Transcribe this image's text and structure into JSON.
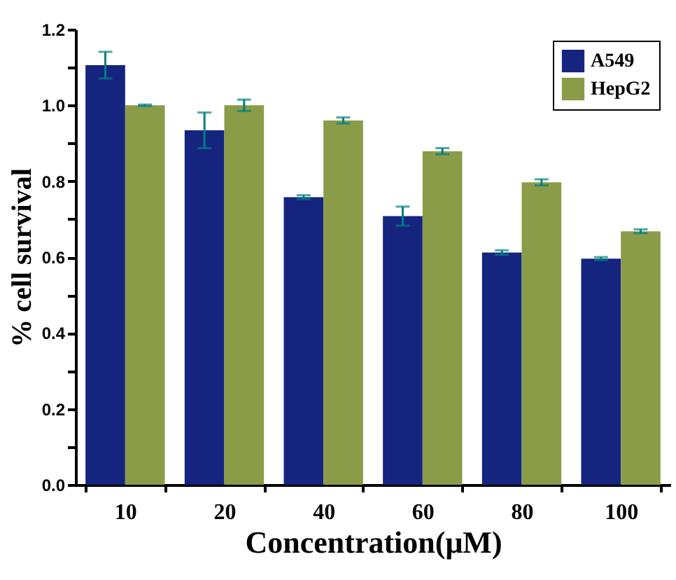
{
  "chart_data": {
    "type": "bar",
    "xlabel": "Concentration(μM)",
    "ylabel": "% cell survival",
    "categories": [
      "10",
      "20",
      "40",
      "60",
      "80",
      "100"
    ],
    "series": [
      {
        "name": "A549",
        "color": "#14247f",
        "values": [
          1.106,
          0.934,
          0.758,
          0.708,
          0.612,
          0.596
        ],
        "errors": [
          0.035,
          0.047,
          0.005,
          0.025,
          0.006,
          0.004
        ]
      },
      {
        "name": "HepG2",
        "color": "#8a9c48",
        "values": [
          1.0,
          1.0,
          0.96,
          0.879,
          0.797,
          0.668
        ],
        "errors": [
          0.002,
          0.015,
          0.008,
          0.008,
          0.008,
          0.005
        ]
      }
    ],
    "ylim": [
      0,
      1.2
    ],
    "yticks": [
      {
        "value": 0,
        "label": "0.0"
      },
      {
        "value": 0.1,
        "label": null
      },
      {
        "value": 0.2,
        "label": "0.2"
      },
      {
        "value": 0.3,
        "label": null
      },
      {
        "value": 0.4,
        "label": "0.4"
      },
      {
        "value": 0.5,
        "label": null
      },
      {
        "value": 0.6,
        "label": "0.6"
      },
      {
        "value": 0.7,
        "label": null
      },
      {
        "value": 0.8,
        "label": "0.8"
      },
      {
        "value": 0.9,
        "label": null
      },
      {
        "value": 1.0,
        "label": "1.0"
      },
      {
        "value": 1.1,
        "label": null
      },
      {
        "value": 1.2,
        "label": "1.2"
      }
    ],
    "grid": false,
    "legend": "top right"
  }
}
